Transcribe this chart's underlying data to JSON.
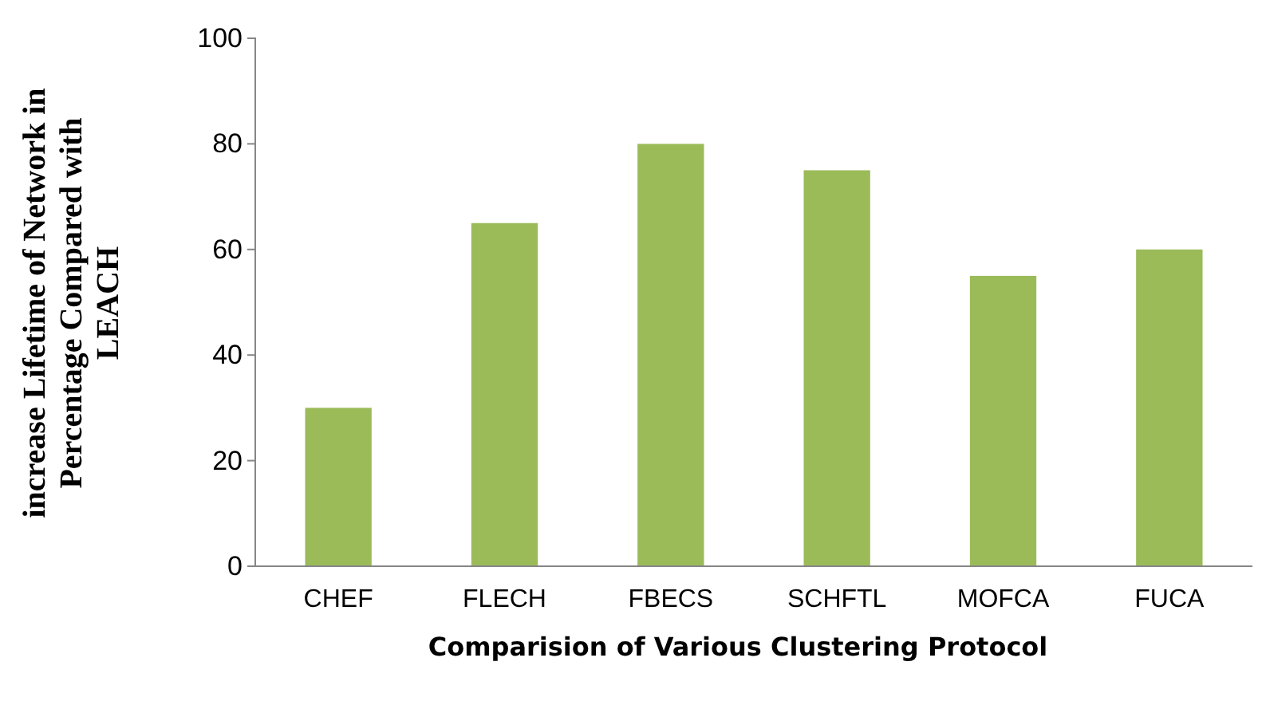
{
  "chart_data": {
    "type": "bar",
    "xlabel": "Comparision of Various Clustering Protocol",
    "ylabel": "increase Lifetime of Network in Percentage Compared with LEACH",
    "categories": [
      "CHEF",
      "FLECH",
      "FBECS",
      "SCHFTL",
      "MOFCA",
      "FUCA"
    ],
    "values": [
      30,
      65,
      80,
      75,
      55,
      60
    ],
    "color": "#9bbb59",
    "ylim": [
      0,
      100
    ],
    "yticks": [
      0,
      20,
      40,
      60,
      80,
      100
    ],
    "grid": false
  }
}
